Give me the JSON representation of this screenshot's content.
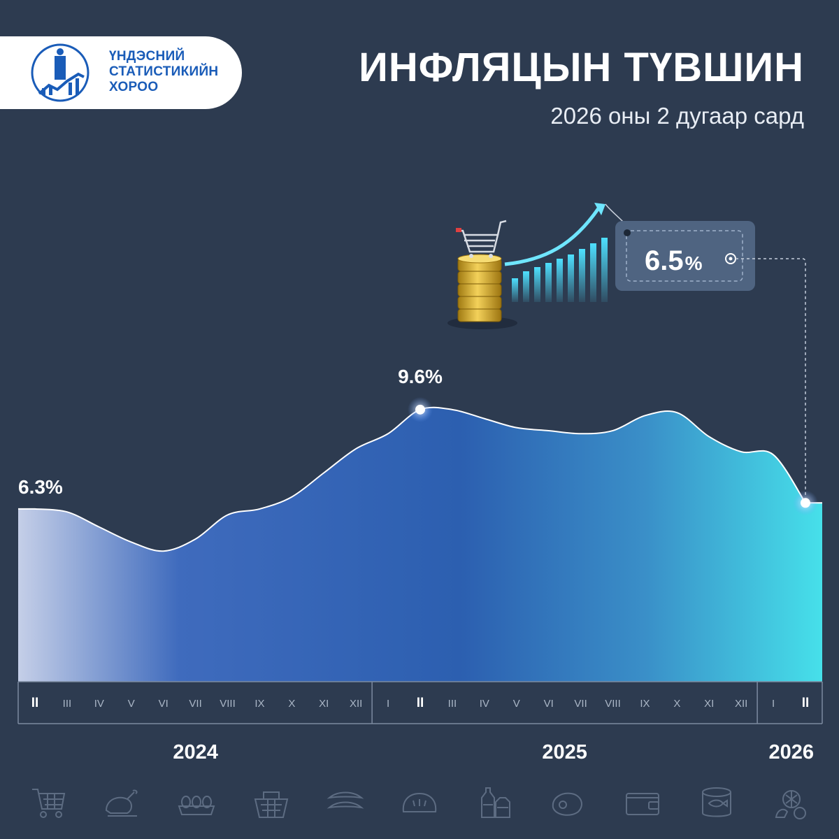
{
  "header": {
    "logo_lines": [
      "ҮНДЭСНИЙ",
      "СТАТИСТИКИЙН",
      "ХОРОО"
    ],
    "title": "ИНФЛЯЦЫН ТҮВШИН",
    "subtitle": "2026 оны 2 дугаар сард"
  },
  "colors": {
    "background": "#2d3b50",
    "logo_blue": "#1a5cb8",
    "area_start": "#c5cfe8",
    "area_mid": "#2c5fb0",
    "area_end": "#46e0ea",
    "callout_box": "#4f6481"
  },
  "callout": {
    "value": "6.5",
    "unit": "%"
  },
  "chart_data": {
    "type": "area",
    "x": [
      "II",
      "III",
      "IV",
      "V",
      "VI",
      "VII",
      "VIII",
      "IX",
      "X",
      "XI",
      "XII",
      "I",
      "II",
      "III",
      "IV",
      "V",
      "VI",
      "VII",
      "VIII",
      "IX",
      "X",
      "XI",
      "XII",
      "I",
      "II"
    ],
    "years": [
      {
        "label": "2024",
        "start": 0,
        "end": 10
      },
      {
        "label": "2025",
        "start": 11,
        "end": 22
      },
      {
        "label": "2026",
        "start": 23,
        "end": 24
      }
    ],
    "values": [
      6.3,
      6.2,
      5.7,
      5.2,
      4.9,
      5.3,
      6.1,
      6.3,
      6.7,
      7.5,
      8.3,
      8.8,
      9.6,
      9.6,
      9.3,
      9.0,
      8.9,
      8.8,
      8.9,
      9.4,
      9.5,
      8.7,
      8.2,
      8.1,
      6.5
    ],
    "highlighted": [
      0,
      12,
      24
    ],
    "data_labels": [
      {
        "index": 0,
        "text": "6.3%"
      },
      {
        "index": 12,
        "text": "9.6%"
      }
    ],
    "bold_ticks": [
      0,
      12,
      24
    ]
  },
  "category_icons": [
    "shopping-cart-icon",
    "chicken-icon",
    "eggs-icon",
    "grocery-basket-icon",
    "sausage-icon",
    "bread-icon",
    "bottles-icon",
    "meat-icon",
    "wallet-icon",
    "canned-fish-icon",
    "vegetables-icon"
  ]
}
